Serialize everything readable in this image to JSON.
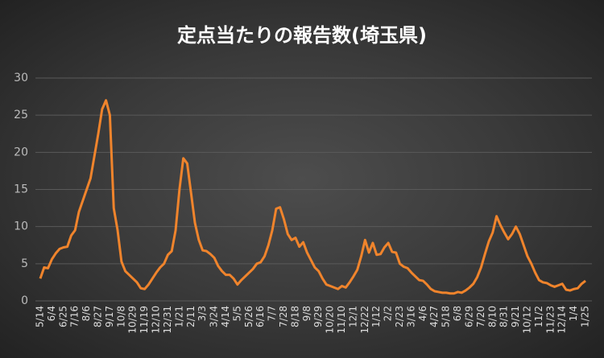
{
  "chart_data": {
    "type": "line",
    "title": "定点当たりの報告数(埼玉県)",
    "categories": [
      "5/14",
      null,
      null,
      "6/4",
      null,
      null,
      "6/25",
      null,
      null,
      "7/16",
      null,
      null,
      "8/6",
      null,
      null,
      "8/27",
      null,
      null,
      "9/17",
      null,
      null,
      "10/8",
      null,
      null,
      "10/29",
      null,
      null,
      "11/19",
      null,
      null,
      "12/10",
      null,
      null,
      "12/31",
      null,
      null,
      "1/21",
      null,
      null,
      "2/11",
      null,
      null,
      "3/3",
      null,
      null,
      "3/24",
      null,
      null,
      "4/14",
      null,
      null,
      "5/5",
      null,
      null,
      "5/26",
      null,
      null,
      "6/16",
      null,
      null,
      "7/7",
      null,
      null,
      "7/28",
      null,
      null,
      "8/18",
      null,
      null,
      "9/8",
      null,
      null,
      "9/29",
      null,
      null,
      "10/20",
      null,
      null,
      "11/10",
      null,
      null,
      "12/1",
      null,
      null,
      "12/22",
      null,
      null,
      "1/12",
      null,
      null,
      "2/2",
      null,
      null,
      "2/23",
      null,
      null,
      "3/16",
      null,
      null,
      "4/6",
      null,
      null,
      "4/27",
      null,
      null,
      "5/18",
      null,
      null,
      "6/8",
      null,
      null,
      "6/29",
      null,
      null,
      "7/20",
      null,
      null,
      "8/10",
      null,
      null,
      "8/31",
      null,
      null,
      "9/21",
      null,
      null,
      "10/12",
      null,
      null,
      "11/2",
      null,
      null,
      "11/23",
      null,
      null,
      "12/14",
      null,
      null,
      "1/4",
      null,
      null,
      "1/25"
    ],
    "values": [
      3,
      4.5,
      4.4,
      5.6,
      6.4,
      7.0,
      7.2,
      7.3,
      8.8,
      9.5,
      12,
      13.5,
      15,
      16.5,
      19.5,
      22.5,
      25.8,
      27,
      25,
      12.5,
      9.5,
      5.3,
      4,
      3.5,
      3,
      2.5,
      1.7,
      1.6,
      2.2,
      3,
      3.8,
      4.5,
      5,
      6.2,
      6.7,
      9.5,
      15,
      19.2,
      18.5,
      14.5,
      10.5,
      8.2,
      6.8,
      6.7,
      6.3,
      5.8,
      4.7,
      4,
      3.5,
      3.5,
      3,
      2.2,
      2.8,
      3.3,
      3.8,
      4.3,
      5,
      5.2,
      6,
      7.5,
      9.5,
      12.4,
      12.6,
      11,
      9,
      8.2,
      8.5,
      7.3,
      7.9,
      6.5,
      5.5,
      4.5,
      4,
      3,
      2.2,
      2,
      1.8,
      1.6,
      2,
      1.8,
      2.5,
      3.3,
      4.2,
      6,
      8.2,
      6.5,
      7.8,
      6.2,
      6.3,
      7.2,
      7.8,
      6.6,
      6.5,
      5,
      4.6,
      4.4,
      3.8,
      3.3,
      2.8,
      2.7,
      2.2,
      1.6,
      1.3,
      1.2,
      1.1,
      1.1,
      1.0,
      1.0,
      1.2,
      1.1,
      1.4,
      1.8,
      2.3,
      3.2,
      4.5,
      6.3,
      8,
      9.2,
      11.4,
      10.2,
      9.2,
      8.3,
      9,
      10,
      9,
      7.5,
      6,
      5,
      3.8,
      2.8,
      2.5,
      2.4,
      2.1,
      1.9,
      2.1,
      2.3,
      1.5,
      1.4,
      1.6,
      1.7,
      2.3,
      2.7
    ],
    "color": "#f0842c",
    "ylim": [
      0,
      30
    ],
    "yticks": [
      0,
      5,
      10,
      15,
      20,
      25,
      30
    ],
    "grid": true
  }
}
